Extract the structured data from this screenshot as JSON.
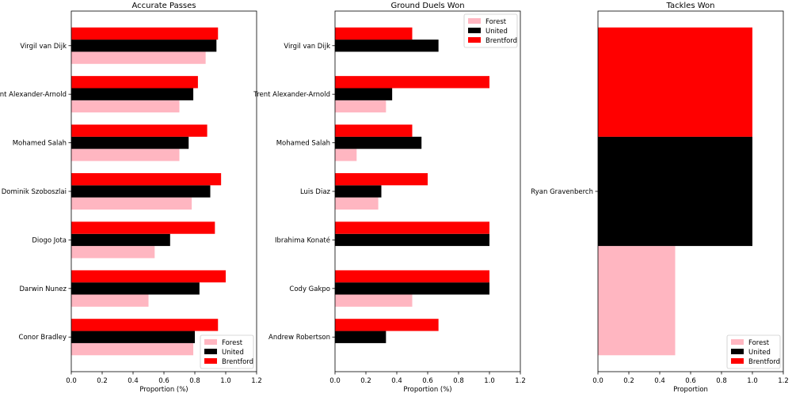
{
  "figure": {
    "legend_labels": [
      "Forest",
      "United",
      "Brentford"
    ],
    "colors": {
      "Forest": "#ffb6c1",
      "United": "#000000",
      "Brentford": "#ff0000"
    }
  },
  "chart_data": [
    {
      "type": "bar",
      "orientation": "horizontal",
      "title": "Accurate Passes",
      "xlabel": "Proportion (%)",
      "ylabel": "",
      "xlim": [
        0,
        1.2
      ],
      "xticks": [
        "0.0",
        "0.2",
        "0.4",
        "0.6",
        "0.8",
        "1.0",
        "1.2"
      ],
      "legend_position": "lower-right",
      "categories": [
        "Virgil van Dijk",
        "Trent Alexander-Arnold",
        "Mohamed Salah",
        "Dominik Szoboszlai",
        "Diogo Jota",
        "Darwin Nunez",
        "Conor Bradley"
      ],
      "series": [
        {
          "name": "Forest",
          "values": [
            0.87,
            0.7,
            0.7,
            0.78,
            0.54,
            0.5,
            0.79
          ]
        },
        {
          "name": "United",
          "values": [
            0.94,
            0.79,
            0.76,
            0.9,
            0.64,
            0.83,
            0.8
          ]
        },
        {
          "name": "Brentford",
          "values": [
            0.95,
            0.82,
            0.88,
            0.97,
            0.93,
            1.0,
            0.95
          ]
        }
      ]
    },
    {
      "type": "bar",
      "orientation": "horizontal",
      "title": "Ground Duels Won",
      "xlabel": "Proportion (%)",
      "ylabel": "",
      "xlim": [
        0,
        1.2
      ],
      "xticks": [
        "0.0",
        "0.2",
        "0.4",
        "0.6",
        "0.8",
        "1.0",
        "1.2"
      ],
      "legend_position": "upper-right",
      "categories": [
        "Virgil van Dijk",
        "Trent Alexander-Arnold",
        "Mohamed Salah",
        "Luis Diaz",
        "Ibrahima Konaté",
        "Cody Gakpo",
        "Andrew Robertson"
      ],
      "series": [
        {
          "name": "Forest",
          "values": [
            0.0,
            0.33,
            0.14,
            0.28,
            0.0,
            0.5,
            0.0
          ]
        },
        {
          "name": "United",
          "values": [
            0.67,
            0.37,
            0.56,
            0.3,
            1.0,
            1.0,
            0.33
          ]
        },
        {
          "name": "Brentford",
          "values": [
            0.5,
            1.0,
            0.5,
            0.6,
            1.0,
            1.0,
            0.67
          ]
        }
      ]
    },
    {
      "type": "bar",
      "orientation": "horizontal",
      "title": "Tackles Won",
      "xlabel": "Proportion",
      "ylabel": "",
      "xlim": [
        0,
        1.2
      ],
      "xticks": [
        "0.0",
        "0.2",
        "0.4",
        "0.6",
        "0.8",
        "1.0",
        "1.2"
      ],
      "legend_position": "lower-right",
      "categories": [
        "Ryan Gravenberch"
      ],
      "series": [
        {
          "name": "Forest",
          "values": [
            0.5
          ]
        },
        {
          "name": "United",
          "values": [
            1.0
          ]
        },
        {
          "name": "Brentford",
          "values": [
            1.0
          ]
        }
      ]
    }
  ]
}
